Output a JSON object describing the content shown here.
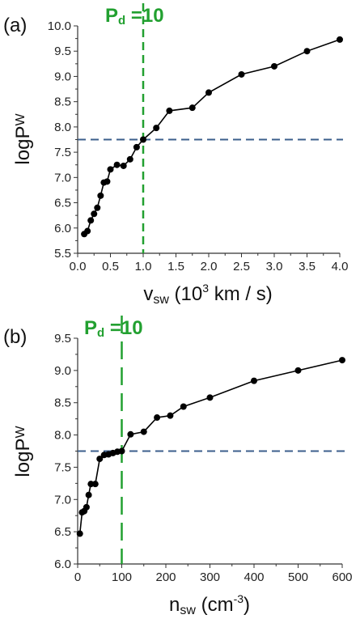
{
  "chart_data": [
    {
      "type": "line",
      "panel_label": "(a)",
      "xlabel": {
        "main": "v",
        "sub": "sw",
        "after": " (10",
        "sup": "3",
        "tail": " km / s)"
      },
      "ylabel": {
        "main": "logP",
        "sub": "W"
      },
      "xlim": [
        0,
        4.0
      ],
      "ylim": [
        5.5,
        10.0
      ],
      "x_ticks": [
        0.0,
        0.5,
        1.0,
        1.5,
        2.0,
        2.5,
        3.0,
        3.5,
        4.0
      ],
      "x_tick_labels": [
        "0.0",
        "0.5",
        "1.0",
        "1.5",
        "2.0",
        "2.5",
        "3.0",
        "3.5",
        "4.0"
      ],
      "y_ticks": [
        5.5,
        6.0,
        6.5,
        7.0,
        7.5,
        8.0,
        8.5,
        9.0,
        9.5,
        10.0
      ],
      "y_tick_labels": [
        "5.5",
        "6.0",
        "6.5",
        "7.0",
        "7.5",
        "8.0",
        "8.5",
        "9.0",
        "9.5",
        "10.0"
      ],
      "x": [
        0.1,
        0.15,
        0.2,
        0.25,
        0.3,
        0.35,
        0.4,
        0.45,
        0.5,
        0.6,
        0.7,
        0.8,
        0.9,
        1.0,
        1.2,
        1.4,
        1.75,
        2.0,
        2.5,
        3.0,
        3.5,
        4.0
      ],
      "y": [
        5.88,
        5.94,
        6.15,
        6.28,
        6.4,
        6.64,
        6.9,
        6.92,
        7.16,
        7.25,
        7.23,
        7.36,
        7.6,
        7.75,
        7.98,
        8.32,
        8.38,
        8.68,
        9.04,
        9.2,
        9.5,
        9.73
      ],
      "vline": {
        "x": 1.0,
        "color": "#22a030"
      },
      "hline": {
        "y": 7.75,
        "color": "#3c5f8c"
      },
      "annotation": {
        "main": "P",
        "sub": "d",
        "after": " =10",
        "color": "#22a030"
      },
      "marker_color": "#000000"
    },
    {
      "type": "line",
      "panel_label": "(b)",
      "xlabel": {
        "main": "n",
        "sub": "sw",
        "after": " (cm",
        "sup": "-3",
        "tail": ")"
      },
      "ylabel": {
        "main": "logP",
        "sub": "W"
      },
      "xlim": [
        0,
        600
      ],
      "ylim": [
        6.0,
        9.5
      ],
      "x_ticks": [
        0,
        100,
        200,
        300,
        400,
        500,
        600
      ],
      "x_tick_labels": [
        "0",
        "100",
        "200",
        "300",
        "400",
        "500",
        "600"
      ],
      "y_ticks": [
        6.0,
        6.5,
        7.0,
        7.5,
        8.0,
        8.5,
        9.0,
        9.5
      ],
      "y_tick_labels": [
        "6.0",
        "6.5",
        "7.0",
        "7.5",
        "8.0",
        "8.5",
        "9.0",
        "9.5"
      ],
      "x": [
        5,
        10,
        15,
        20,
        25,
        30,
        40,
        50,
        60,
        70,
        80,
        90,
        100,
        120,
        150,
        180,
        210,
        240,
        300,
        400,
        500,
        600
      ],
      "y": [
        6.47,
        6.8,
        6.82,
        6.88,
        7.07,
        7.24,
        7.24,
        7.63,
        7.69,
        7.7,
        7.72,
        7.74,
        7.75,
        8.01,
        8.05,
        8.27,
        8.3,
        8.44,
        8.58,
        8.84,
        9.0,
        9.16
      ],
      "vline": {
        "x": 100,
        "color": "#22a030"
      },
      "hline": {
        "y": 7.75,
        "color": "#3c5f8c"
      },
      "annotation": {
        "main": "P",
        "sub": "d",
        "after": " =10",
        "color": "#22a030"
      },
      "marker_color": "#000000"
    }
  ]
}
